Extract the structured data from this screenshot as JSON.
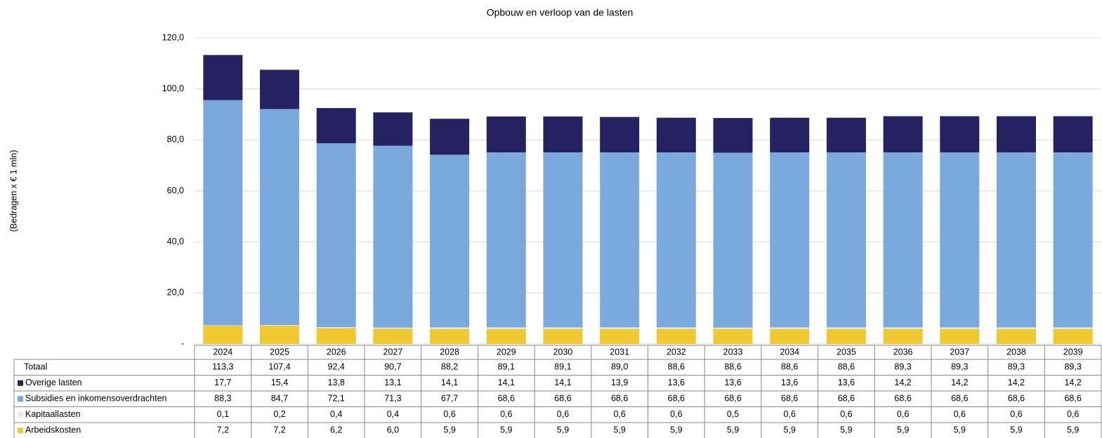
{
  "chart_data": {
    "type": "stacked_bar",
    "title": "Opbouw en verloop van de lasten",
    "y_label": "(Bedragen x € 1 mln)",
    "categories": [
      "2024",
      "2025",
      "2026",
      "2027",
      "2028",
      "2029",
      "2030",
      "2031",
      "2032",
      "2033",
      "2034",
      "2035",
      "2036",
      "2037",
      "2038",
      "2039"
    ],
    "ylim": [
      0,
      120
    ],
    "yticks": [
      {
        "value": 0,
        "label": "-"
      },
      {
        "value": 20,
        "label": "20,0"
      },
      {
        "value": 40,
        "label": "40,0"
      },
      {
        "value": 60,
        "label": "60,0"
      },
      {
        "value": 80,
        "label": "80,0"
      },
      {
        "value": 100,
        "label": "100,0"
      },
      {
        "value": 120,
        "label": "120,0"
      }
    ],
    "grid": true,
    "totals": {
      "name": "Totaal",
      "values": [
        113.3,
        107.4,
        92.4,
        90.7,
        88.2,
        89.1,
        89.1,
        89.0,
        88.6,
        88.6,
        88.6,
        88.6,
        89.3,
        89.3,
        89.3,
        89.3
      ],
      "value_labels": [
        "113,3",
        "107,4",
        "92,4",
        "90,7",
        "88,2",
        "89,1",
        "89,1",
        "89,0",
        "88,6",
        "88,6",
        "88,6",
        "88,6",
        "89,3",
        "89,3",
        "89,3",
        "89,3"
      ]
    },
    "series": [
      {
        "name": "Overige lasten",
        "color": "#262262",
        "values": [
          17.7,
          15.4,
          13.8,
          13.1,
          14.1,
          14.1,
          14.1,
          13.9,
          13.6,
          13.6,
          13.6,
          13.6,
          14.2,
          14.2,
          14.2,
          14.2
        ],
        "value_labels": [
          "17,7",
          "15,4",
          "13,8",
          "13,1",
          "14,1",
          "14,1",
          "14,1",
          "13,9",
          "13,6",
          "13,6",
          "13,6",
          "13,6",
          "14,2",
          "14,2",
          "14,2",
          "14,2"
        ]
      },
      {
        "name": "Subsidies en inkomensoverdrachten",
        "color": "#7aaadd",
        "values": [
          88.3,
          84.7,
          72.1,
          71.3,
          67.7,
          68.6,
          68.6,
          68.6,
          68.6,
          68.6,
          68.6,
          68.6,
          68.6,
          68.6,
          68.6,
          68.6
        ],
        "value_labels": [
          "88,3",
          "84,7",
          "72,1",
          "71,3",
          "67,7",
          "68,6",
          "68,6",
          "68,6",
          "68,6",
          "68,6",
          "68,6",
          "68,6",
          "68,6",
          "68,6",
          "68,6",
          "68,6"
        ]
      },
      {
        "name": "Kapitaallasten",
        "color": "#e4ebf5",
        "values": [
          0.1,
          0.2,
          0.4,
          0.4,
          0.6,
          0.6,
          0.6,
          0.6,
          0.6,
          0.5,
          0.6,
          0.6,
          0.6,
          0.6,
          0.6,
          0.6
        ],
        "value_labels": [
          "0,1",
          "0,2",
          "0,4",
          "0,4",
          "0,6",
          "0,6",
          "0,6",
          "0,6",
          "0,6",
          "0,5",
          "0,6",
          "0,6",
          "0,6",
          "0,6",
          "0,6",
          "0,6"
        ]
      },
      {
        "name": "Arbeidskosten",
        "color": "#f0c830",
        "values": [
          7.2,
          7.2,
          6.2,
          6.0,
          5.9,
          5.9,
          5.9,
          5.9,
          5.9,
          5.9,
          5.9,
          5.9,
          5.9,
          5.9,
          5.9,
          5.9
        ],
        "value_labels": [
          "7,2",
          "7,2",
          "6,2",
          "6,0",
          "5,9",
          "5,9",
          "5,9",
          "5,9",
          "5,9",
          "5,9",
          "5,9",
          "5,9",
          "5,9",
          "5,9",
          "5,9",
          "5,9"
        ]
      }
    ]
  }
}
